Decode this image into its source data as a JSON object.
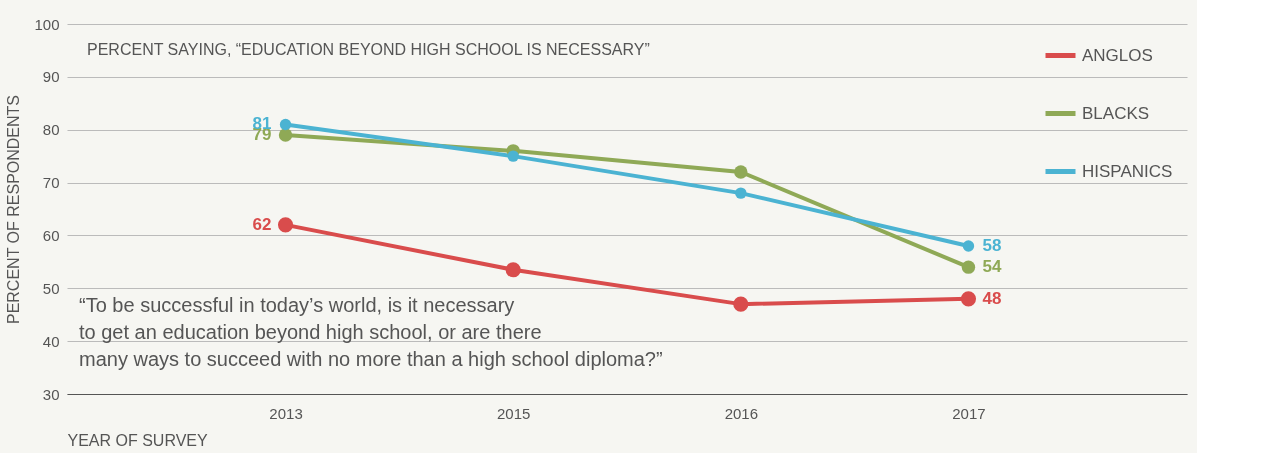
{
  "chart_data": {
    "type": "line",
    "title": "PERCENT SAYING, “EDUCATION BEYOND HIGH SCHOOL IS NECESSARY”",
    "xlabel": "YEAR OF SURVEY",
    "ylabel": "PERCENT OF RESPONDENTS",
    "categories": [
      "2013",
      "2015",
      "2016",
      "2017"
    ],
    "series": [
      {
        "name": "ANGLOS",
        "color": "#d94c4c",
        "values": [
          62,
          53.5,
          47,
          48
        ],
        "value_labels": [
          "62",
          null,
          null,
          "48"
        ]
      },
      {
        "name": "BLACKS",
        "color": "#8fa956",
        "values": [
          79,
          76,
          72,
          54
        ],
        "value_labels": [
          "79",
          null,
          null,
          "54"
        ]
      },
      {
        "name": "HISPANICS",
        "color": "#4bb3d2",
        "values": [
          81,
          75,
          68,
          58
        ],
        "value_labels": [
          "81",
          null,
          null,
          "58"
        ]
      }
    ],
    "ylim": [
      30,
      100
    ],
    "yticks": [
      30,
      40,
      50,
      60,
      70,
      80,
      90,
      100
    ],
    "grid": "y",
    "legend": "top right",
    "marker": "circle",
    "line_style": "solid",
    "annotations": [
      "“To be successful in today’s world, is it necessary\n to get an education beyond high school, or are there\nmany ways to succeed with no more than a high school diploma?”"
    ]
  }
}
